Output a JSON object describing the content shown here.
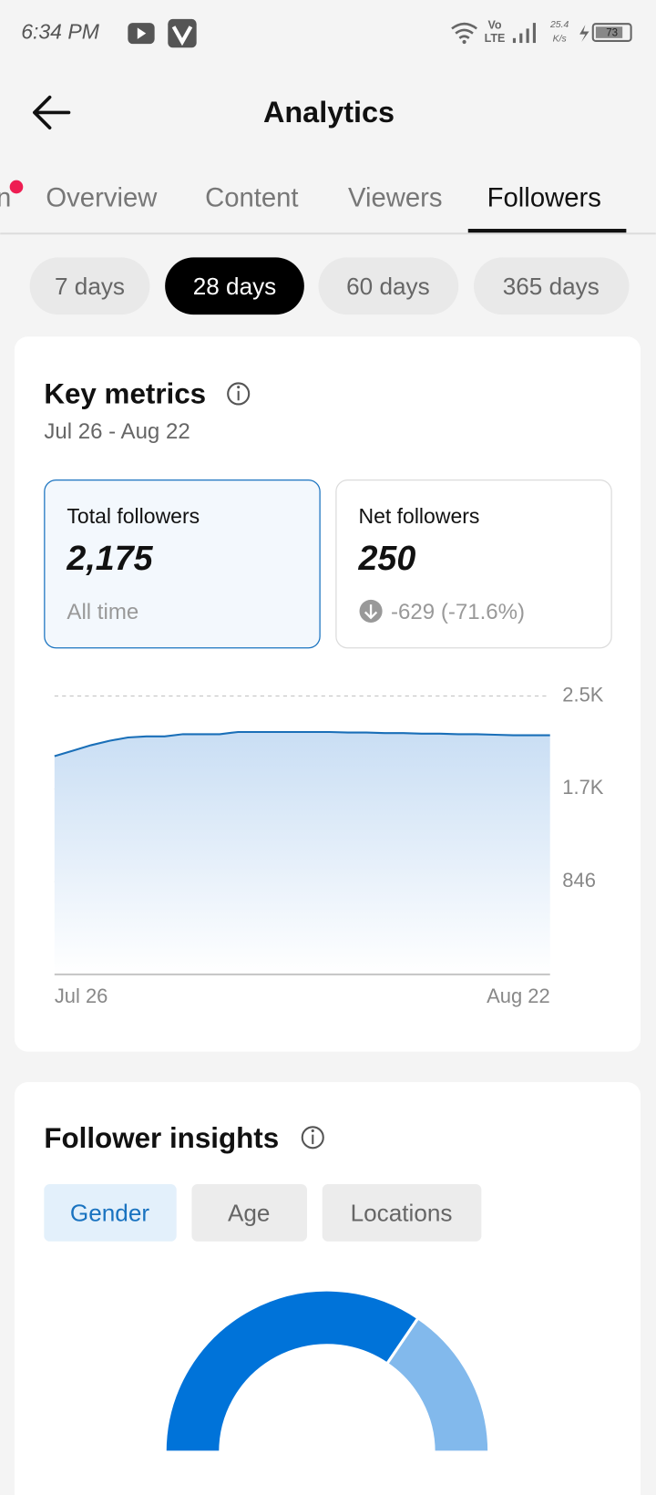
{
  "status_bar": {
    "time": "6:34 PM",
    "network_top": "Vo",
    "network_bottom": "LTE",
    "speed_top": "25.4",
    "speed_bottom": "K/s",
    "battery": "73"
  },
  "header": {
    "title": "Analytics"
  },
  "tabs": [
    "n",
    "Overview",
    "Content",
    "Viewers",
    "Followers"
  ],
  "periods": [
    "7 days",
    "28 days",
    "60 days",
    "365 days"
  ],
  "key_metrics": {
    "title": "Key metrics",
    "date_range": "Jul 26 - Aug 22",
    "total": {
      "label": "Total followers",
      "value": "2,175",
      "note": "All time"
    },
    "net": {
      "label": "Net followers",
      "value": "250",
      "change": "-629 (-71.6%)"
    }
  },
  "chart_data": {
    "type": "line",
    "color": "#1a6fb8",
    "categories": [
      "Jul 26",
      null,
      null,
      null,
      null,
      null,
      null,
      null,
      null,
      null,
      null,
      null,
      null,
      null,
      null,
      null,
      null,
      null,
      null,
      null,
      null,
      null,
      null,
      null,
      null,
      null,
      null,
      "Aug 22"
    ],
    "values": [
      1990,
      2040,
      2090,
      2130,
      2160,
      2170,
      2170,
      2190,
      2190,
      2190,
      2210,
      2210,
      2210,
      2210,
      2210,
      2210,
      2205,
      2205,
      2200,
      2200,
      2195,
      2195,
      2190,
      2190,
      2185,
      2180,
      2180,
      2180
    ],
    "ylim": [
      0,
      2538
    ],
    "yticks": [
      {
        "value": 846,
        "label": "846"
      },
      {
        "value": 1692,
        "label": "1.7K"
      },
      {
        "value": 2538,
        "label": "2.5K"
      }
    ],
    "grid": true
  },
  "insights": {
    "title": "Follower insights",
    "filters": [
      "Gender",
      "Age",
      "Locations"
    ],
    "gender_chart": {
      "type": "pie",
      "values": [
        69,
        31
      ],
      "colors": [
        "#0073d9",
        "#82b9ec"
      ]
    }
  }
}
